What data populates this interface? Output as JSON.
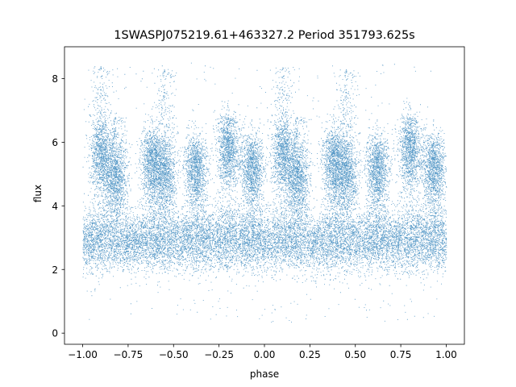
{
  "chart_data": {
    "type": "scatter",
    "title": "1SWASPJ075219.61+463327.2 Period 351793.625s",
    "xlabel": "phase",
    "ylabel": "flux",
    "xlim": [
      -1.1,
      1.1
    ],
    "ylim": [
      -0.35,
      9.0
    ],
    "xticks": [
      -1.0,
      -0.75,
      -0.5,
      -0.25,
      0.0,
      0.25,
      0.5,
      0.75,
      1.0
    ],
    "xtick_labels": [
      "−1.00",
      "−0.75",
      "−0.50",
      "−0.25",
      "0.00",
      "0.25",
      "0.50",
      "0.75",
      "1.00"
    ],
    "yticks": [
      0,
      2,
      4,
      6,
      8
    ],
    "ytick_labels": [
      "0",
      "2",
      "4",
      "6",
      "8"
    ],
    "grid": false,
    "point_color": "#1f77b4",
    "x_range_of_points": [
      -1.0,
      1.0
    ],
    "baseline_band": {
      "center": 2.9,
      "spread": 0.45
    },
    "flare_clusters": [
      {
        "x": -0.9,
        "y": 5.6,
        "peak": 8.4
      },
      {
        "x": -0.82,
        "y": 4.9,
        "peak": 6.8
      },
      {
        "x": -0.62,
        "y": 5.4,
        "peak": 6.2
      },
      {
        "x": -0.55,
        "y": 5.0,
        "peak": 8.3
      },
      {
        "x": -0.38,
        "y": 5.2,
        "peak": 6.0
      },
      {
        "x": -0.2,
        "y": 5.8,
        "peak": 6.8
      },
      {
        "x": -0.07,
        "y": 5.2,
        "peak": 6.0
      },
      {
        "x": 0.1,
        "y": 5.6,
        "peak": 8.4
      },
      {
        "x": 0.18,
        "y": 4.9,
        "peak": 6.8
      },
      {
        "x": 0.38,
        "y": 5.4,
        "peak": 6.2
      },
      {
        "x": 0.45,
        "y": 5.0,
        "peak": 8.3
      },
      {
        "x": 0.62,
        "y": 5.2,
        "peak": 6.0
      },
      {
        "x": 0.8,
        "y": 5.8,
        "peak": 6.8
      },
      {
        "x": 0.93,
        "y": 5.2,
        "peak": 6.0
      }
    ]
  }
}
